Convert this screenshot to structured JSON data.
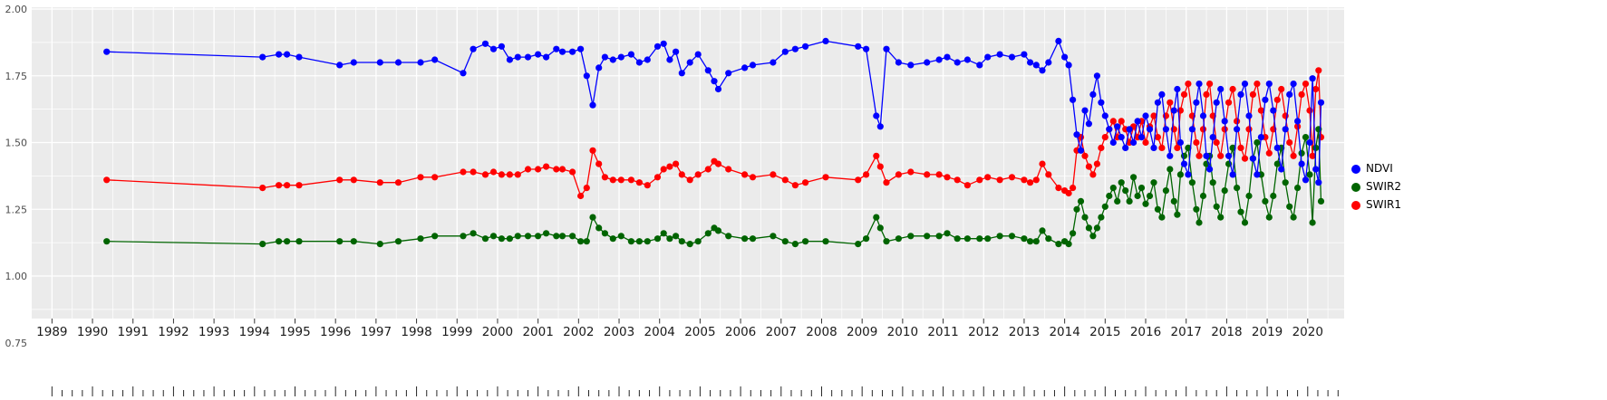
{
  "page": {
    "background": "#FFFFFF"
  },
  "chart_data": {
    "type": "line",
    "title": "",
    "xlabel": "",
    "ylabel": "",
    "grid": true,
    "legend_position": "right",
    "panel_background": "#EBEBEB",
    "gridline_color": "#FFFFFF",
    "xlim": [
      1988.5,
      2020.9
    ],
    "ylim": [
      0.75,
      2.0
    ],
    "x_ticks": [
      1989,
      1990,
      1991,
      1992,
      1993,
      1994,
      1995,
      1996,
      1997,
      1998,
      1999,
      2000,
      2001,
      2002,
      2003,
      2004,
      2005,
      2006,
      2007,
      2008,
      2009,
      2010,
      2011,
      2012,
      2013,
      2014,
      2015,
      2016,
      2017,
      2018,
      2019,
      2020
    ],
    "y_ticks": [
      0.75,
      1.0,
      1.25,
      1.5,
      1.75,
      2.0
    ],
    "legend": [
      "NDVI",
      "SWIR2",
      "SWIR1"
    ],
    "x": [
      1990.35,
      1994.2,
      1994.6,
      1994.8,
      1995.1,
      1996.1,
      1996.45,
      1997.1,
      1997.55,
      1998.1,
      1998.45,
      1999.15,
      1999.4,
      1999.7,
      1999.9,
      2000.1,
      2000.3,
      2000.5,
      2000.75,
      2001.0,
      2001.2,
      2001.45,
      2001.6,
      2001.85,
      2002.05,
      2002.2,
      2002.35,
      2002.5,
      2002.65,
      2002.85,
      2003.05,
      2003.3,
      2003.5,
      2003.7,
      2003.95,
      2004.1,
      2004.25,
      2004.4,
      2004.55,
      2004.75,
      2004.95,
      2005.2,
      2005.35,
      2005.45,
      2005.7,
      2006.1,
      2006.3,
      2006.8,
      2007.1,
      2007.35,
      2007.6,
      2008.1,
      2008.9,
      2009.1,
      2009.35,
      2009.45,
      2009.6,
      2009.9,
      2010.2,
      2010.6,
      2010.9,
      2011.1,
      2011.35,
      2011.6,
      2011.9,
      2012.1,
      2012.4,
      2012.7,
      2013.0,
      2013.15,
      2013.3,
      2013.45,
      2013.6,
      2013.85,
      2014.0,
      2014.1,
      2014.2,
      2014.3,
      2014.4,
      2014.5,
      2014.6,
      2014.7,
      2014.8,
      2014.9,
      2015.0,
      2015.1,
      2015.2,
      2015.3,
      2015.4,
      2015.5,
      2015.6,
      2015.7,
      2015.8,
      2015.9,
      2016.0,
      2016.1,
      2016.2,
      2016.3,
      2016.4,
      2016.5,
      2016.6,
      2016.7,
      2016.78,
      2016.86,
      2016.95,
      2017.05,
      2017.15,
      2017.25,
      2017.32,
      2017.42,
      2017.5,
      2017.58,
      2017.66,
      2017.75,
      2017.85,
      2017.95,
      2018.05,
      2018.15,
      2018.25,
      2018.35,
      2018.45,
      2018.55,
      2018.65,
      2018.75,
      2018.85,
      2018.95,
      2019.05,
      2019.15,
      2019.25,
      2019.35,
      2019.45,
      2019.55,
      2019.65,
      2019.75,
      2019.85,
      2019.95,
      2020.05,
      2020.12,
      2020.2,
      2020.27,
      2020.33
    ],
    "series": [
      {
        "name": "NDVI",
        "color": "#0000FF",
        "values": [
          1.84,
          1.82,
          1.83,
          1.83,
          1.82,
          1.79,
          1.8,
          1.8,
          1.8,
          1.8,
          1.81,
          1.76,
          1.85,
          1.87,
          1.85,
          1.86,
          1.81,
          1.82,
          1.82,
          1.83,
          1.82,
          1.85,
          1.84,
          1.84,
          1.85,
          1.75,
          1.64,
          1.78,
          1.82,
          1.81,
          1.82,
          1.83,
          1.8,
          1.81,
          1.86,
          1.87,
          1.81,
          1.84,
          1.76,
          1.8,
          1.83,
          1.77,
          1.73,
          1.7,
          1.76,
          1.78,
          1.79,
          1.8,
          1.84,
          1.85,
          1.86,
          1.88,
          1.86,
          1.85,
          1.6,
          1.56,
          1.85,
          1.8,
          1.79,
          1.8,
          1.81,
          1.82,
          1.8,
          1.81,
          1.79,
          1.82,
          1.83,
          1.82,
          1.83,
          1.8,
          1.79,
          1.77,
          1.8,
          1.88,
          1.82,
          1.79,
          1.66,
          1.53,
          1.47,
          1.62,
          1.57,
          1.68,
          1.75,
          1.65,
          1.6,
          1.55,
          1.5,
          1.56,
          1.52,
          1.48,
          1.55,
          1.5,
          1.58,
          1.52,
          1.6,
          1.55,
          1.48,
          1.65,
          1.68,
          1.55,
          1.45,
          1.62,
          1.7,
          1.5,
          1.42,
          1.38,
          1.55,
          1.65,
          1.72,
          1.6,
          1.45,
          1.4,
          1.52,
          1.65,
          1.7,
          1.58,
          1.45,
          1.38,
          1.55,
          1.68,
          1.72,
          1.6,
          1.44,
          1.38,
          1.52,
          1.66,
          1.72,
          1.62,
          1.48,
          1.4,
          1.55,
          1.68,
          1.72,
          1.58,
          1.42,
          1.36,
          1.5,
          1.74,
          1.4,
          1.35,
          1.65
        ]
      },
      {
        "name": "SWIR2",
        "color": "#006400",
        "values": [
          1.13,
          1.12,
          1.13,
          1.13,
          1.13,
          1.13,
          1.13,
          1.12,
          1.13,
          1.14,
          1.15,
          1.15,
          1.16,
          1.14,
          1.15,
          1.14,
          1.14,
          1.15,
          1.15,
          1.15,
          1.16,
          1.15,
          1.15,
          1.15,
          1.13,
          1.13,
          1.22,
          1.18,
          1.16,
          1.14,
          1.15,
          1.13,
          1.13,
          1.13,
          1.14,
          1.16,
          1.14,
          1.15,
          1.13,
          1.12,
          1.13,
          1.16,
          1.18,
          1.17,
          1.15,
          1.14,
          1.14,
          1.15,
          1.13,
          1.12,
          1.13,
          1.13,
          1.12,
          1.14,
          1.22,
          1.18,
          1.13,
          1.14,
          1.15,
          1.15,
          1.15,
          1.16,
          1.14,
          1.14,
          1.14,
          1.14,
          1.15,
          1.15,
          1.14,
          1.13,
          1.13,
          1.17,
          1.14,
          1.12,
          1.13,
          1.12,
          1.16,
          1.25,
          1.28,
          1.22,
          1.18,
          1.15,
          1.18,
          1.22,
          1.26,
          1.3,
          1.33,
          1.28,
          1.35,
          1.32,
          1.28,
          1.37,
          1.3,
          1.33,
          1.27,
          1.3,
          1.35,
          1.25,
          1.22,
          1.32,
          1.4,
          1.28,
          1.23,
          1.38,
          1.45,
          1.48,
          1.35,
          1.25,
          1.2,
          1.3,
          1.42,
          1.45,
          1.35,
          1.26,
          1.22,
          1.32,
          1.42,
          1.48,
          1.33,
          1.24,
          1.2,
          1.3,
          1.44,
          1.5,
          1.38,
          1.28,
          1.22,
          1.3,
          1.42,
          1.48,
          1.35,
          1.26,
          1.22,
          1.33,
          1.46,
          1.52,
          1.38,
          1.2,
          1.48,
          1.55,
          1.28
        ]
      },
      {
        "name": "SWIR1",
        "color": "#FF0000",
        "values": [
          1.36,
          1.33,
          1.34,
          1.34,
          1.34,
          1.36,
          1.36,
          1.35,
          1.35,
          1.37,
          1.37,
          1.39,
          1.39,
          1.38,
          1.39,
          1.38,
          1.38,
          1.38,
          1.4,
          1.4,
          1.41,
          1.4,
          1.4,
          1.39,
          1.3,
          1.33,
          1.47,
          1.42,
          1.37,
          1.36,
          1.36,
          1.36,
          1.35,
          1.34,
          1.37,
          1.4,
          1.41,
          1.42,
          1.38,
          1.36,
          1.38,
          1.4,
          1.43,
          1.42,
          1.4,
          1.38,
          1.37,
          1.38,
          1.36,
          1.34,
          1.35,
          1.37,
          1.36,
          1.38,
          1.45,
          1.41,
          1.35,
          1.38,
          1.39,
          1.38,
          1.38,
          1.37,
          1.36,
          1.34,
          1.36,
          1.37,
          1.36,
          1.37,
          1.36,
          1.35,
          1.36,
          1.42,
          1.38,
          1.33,
          1.32,
          1.31,
          1.33,
          1.47,
          1.52,
          1.45,
          1.41,
          1.38,
          1.42,
          1.48,
          1.52,
          1.55,
          1.58,
          1.52,
          1.58,
          1.55,
          1.5,
          1.56,
          1.52,
          1.58,
          1.5,
          1.56,
          1.6,
          1.52,
          1.48,
          1.6,
          1.65,
          1.55,
          1.48,
          1.62,
          1.68,
          1.72,
          1.6,
          1.5,
          1.45,
          1.55,
          1.68,
          1.72,
          1.6,
          1.5,
          1.45,
          1.55,
          1.65,
          1.7,
          1.58,
          1.48,
          1.44,
          1.55,
          1.68,
          1.72,
          1.62,
          1.52,
          1.46,
          1.55,
          1.66,
          1.7,
          1.6,
          1.5,
          1.45,
          1.56,
          1.68,
          1.72,
          1.62,
          1.45,
          1.7,
          1.77,
          1.52
        ]
      }
    ]
  }
}
